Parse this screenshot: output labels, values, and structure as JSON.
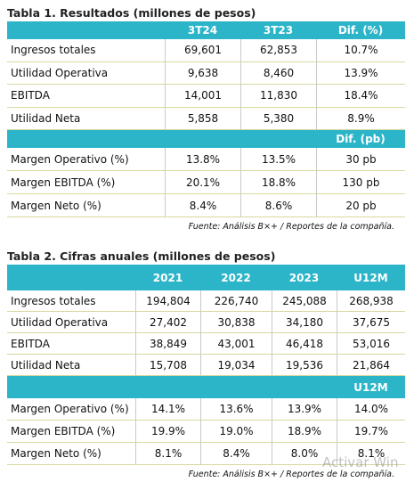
{
  "table1": {
    "title": "Tabla 1. Resultados (millones de pesos)",
    "header": [
      "3T24",
      "3T23",
      "Dif. (%)"
    ],
    "rows": [
      [
        "Ingresos totales",
        "69,601",
        "62,853",
        "10.7%"
      ],
      [
        "Utilidad Operativa",
        "9,638",
        "8,460",
        "13.9%"
      ],
      [
        "EBITDA",
        "14,001",
        "11,830",
        "18.4%"
      ],
      [
        "Utilidad Neta",
        "5,858",
        "5,380",
        "8.9%"
      ]
    ],
    "header2": "Dif. (pb)",
    "rows2": [
      [
        "Margen Operativo (%)",
        "13.8%",
        "13.5%",
        "30 pb"
      ],
      [
        "Margen EBITDA (%)",
        "20.1%",
        "18.8%",
        "130 pb"
      ],
      [
        "Margen Neto (%)",
        "8.4%",
        "8.6%",
        "20 pb"
      ]
    ],
    "source": "Fuente: Análisis B×+ / Reportes de la compañía."
  },
  "table2": {
    "title": "Tabla 2. Cifras anuales (millones de pesos)",
    "header": [
      "2021",
      "2022",
      "2023",
      "U12M"
    ],
    "rows": [
      [
        "Ingresos totales",
        "194,804",
        "226,740",
        "245,088",
        "268,938"
      ],
      [
        "Utilidad Operativa",
        "27,402",
        "30,838",
        "34,180",
        "37,675"
      ],
      [
        "EBITDA",
        "38,849",
        "43,001",
        "46,418",
        "53,016"
      ],
      [
        "Utilidad Neta",
        "15,708",
        "19,034",
        "19,536",
        "21,864"
      ]
    ],
    "header2": "U12M",
    "rows2": [
      [
        "Margen Operativo (%)",
        "14.1%",
        "13.6%",
        "13.9%",
        "14.0%"
      ],
      [
        "Margen EBITDA (%)",
        "19.9%",
        "19.0%",
        "18.9%",
        "19.7%"
      ],
      [
        "Margen Neto (%)",
        "8.1%",
        "8.4%",
        "8.0%",
        "8.1%"
      ]
    ],
    "source": "Fuente: Análisis B×+ / Reportes de la compañía."
  },
  "watermark": "Activar Win"
}
